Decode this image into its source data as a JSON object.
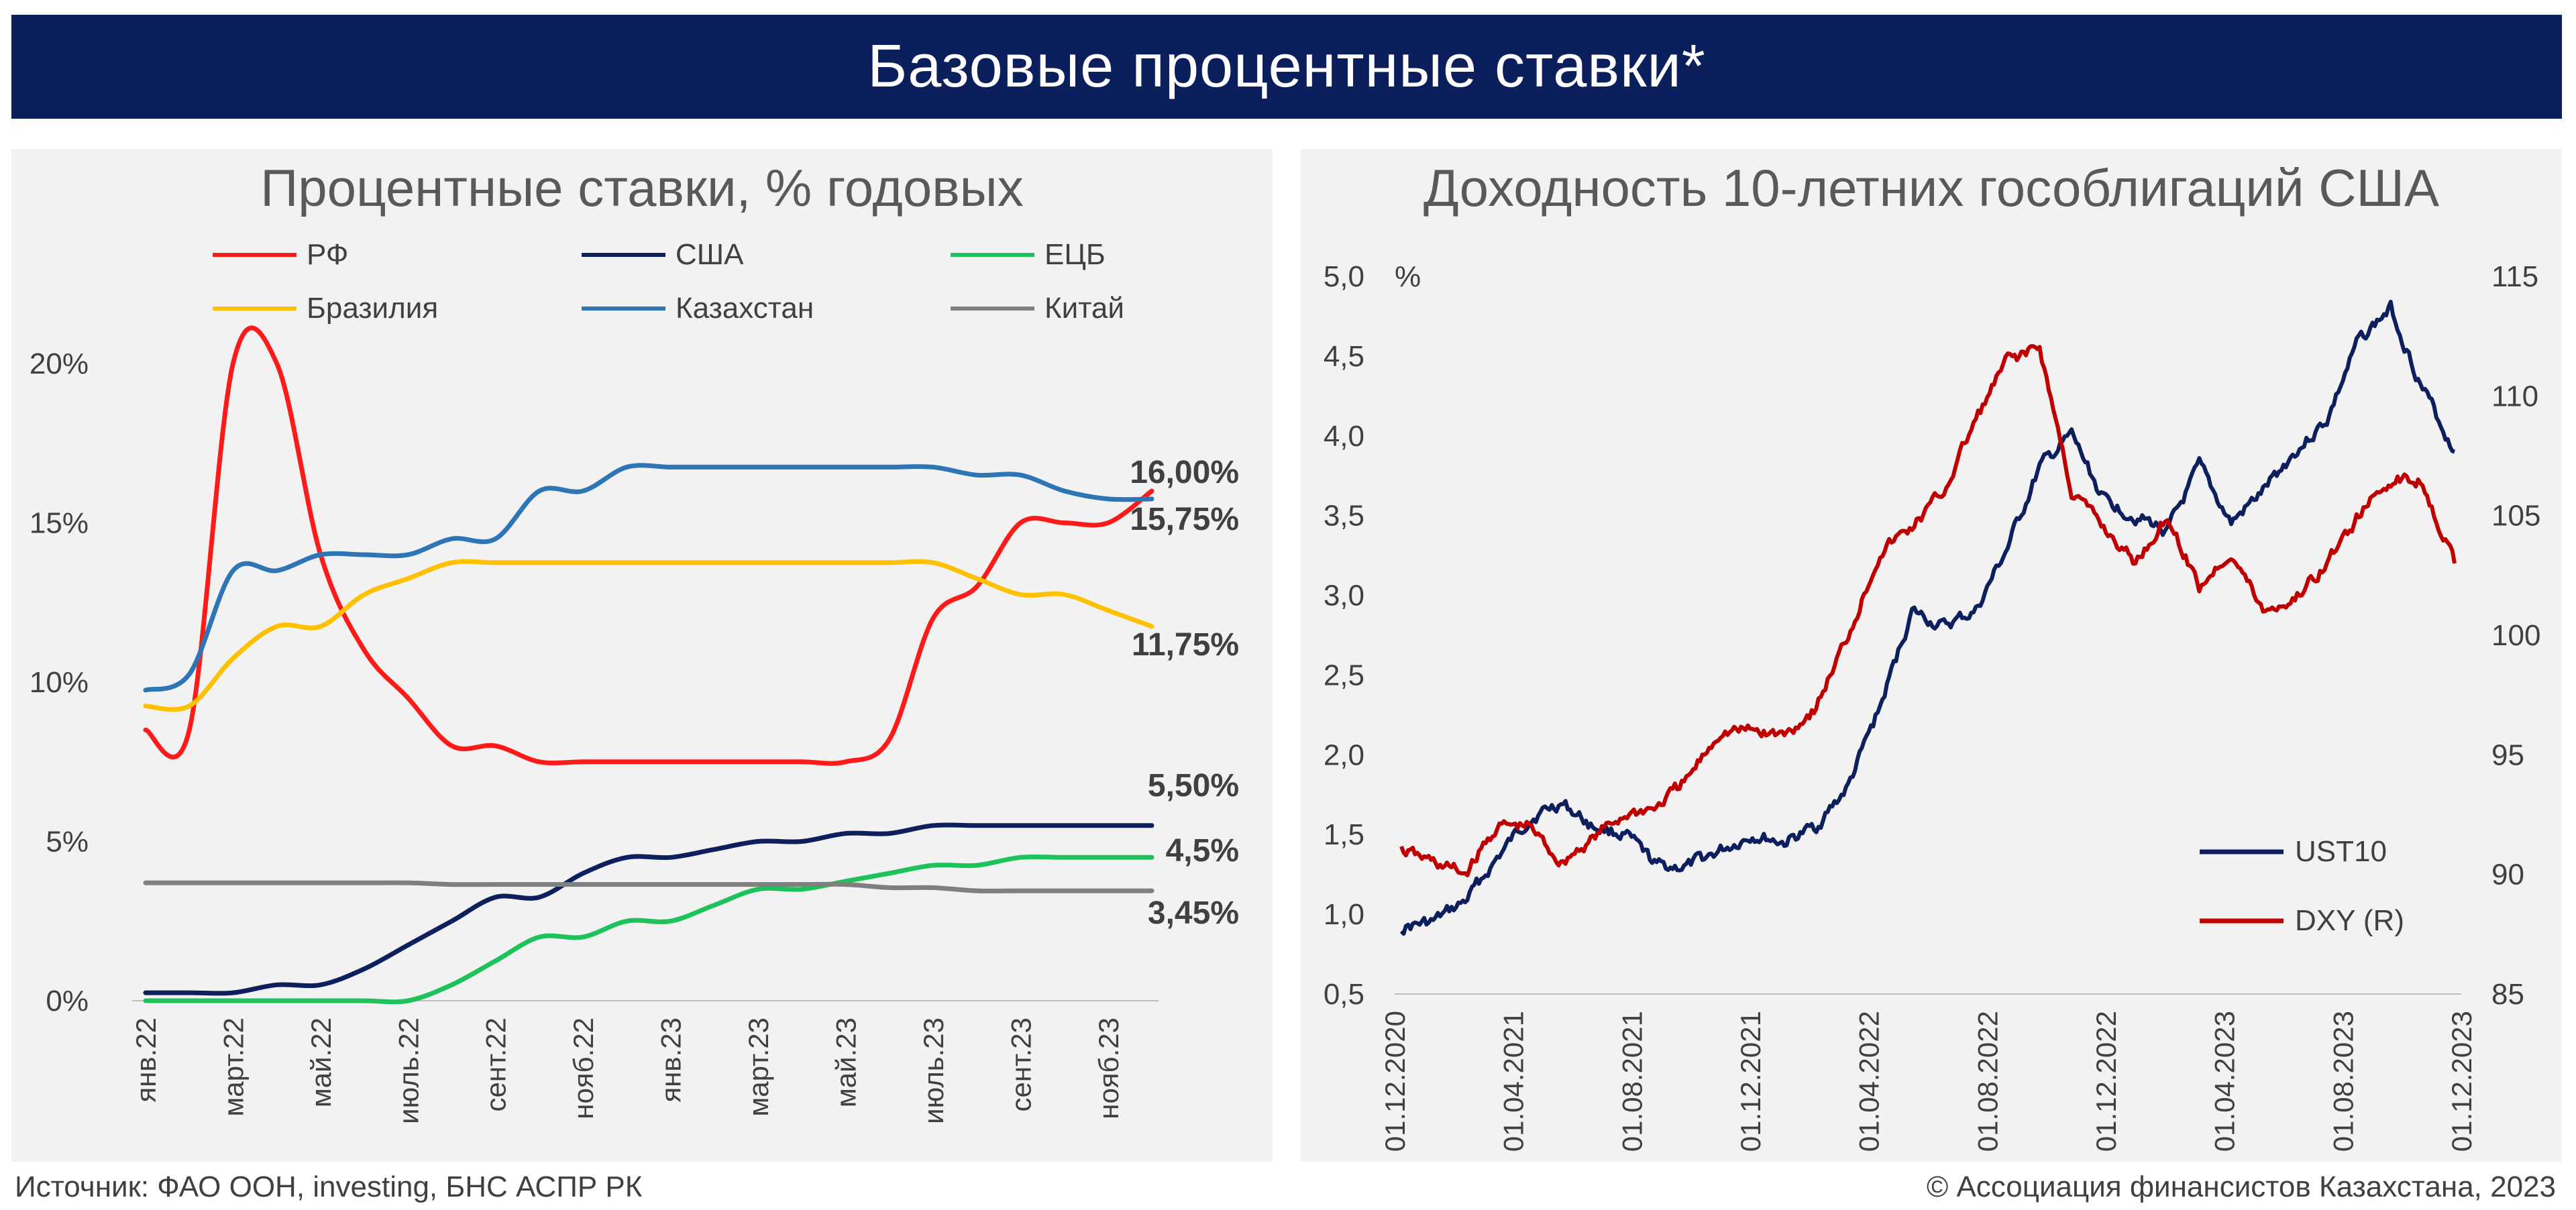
{
  "banner_title": "Базовые процентные ставки*",
  "footer": {
    "source": "Источник: ФАО ООН, investing, БНС АСПР РК",
    "copyright": "© Ассоциация финансистов Казахстана, 2023"
  },
  "chart_data": [
    {
      "type": "line",
      "title": "Процентные ставки, % годовых",
      "xlabel": "",
      "ylabel": "",
      "ylim": [
        0,
        20
      ],
      "grid": false,
      "yticks": [
        {
          "value": 0,
          "label": "0%"
        },
        {
          "value": 5,
          "label": "5%"
        },
        {
          "value": 10,
          "label": "10%"
        },
        {
          "value": 15,
          "label": "15%"
        },
        {
          "value": 20,
          "label": "20%"
        }
      ],
      "x_tick_labels": [
        "янв.22",
        "март.22",
        "май.22",
        "июль.22",
        "сент.22",
        "нояб.22",
        "янв.23",
        "март.23",
        "май.23",
        "июль.23",
        "сент.23",
        "нояб.23"
      ],
      "x_months": [
        "2022-01",
        "2022-02",
        "2022-03",
        "2022-04",
        "2022-05",
        "2022-06",
        "2022-07",
        "2022-08",
        "2022-09",
        "2022-10",
        "2022-11",
        "2022-12",
        "2023-01",
        "2023-02",
        "2023-03",
        "2023-04",
        "2023-05",
        "2023-06",
        "2023-07",
        "2023-08",
        "2023-09",
        "2023-10",
        "2023-11",
        "2023-12"
      ],
      "legend": [
        {
          "name": "РФ",
          "color": "#ff1a1a"
        },
        {
          "name": "США",
          "color": "#0d1f5c"
        },
        {
          "name": "ЕЦБ",
          "color": "#1ec25a"
        },
        {
          "name": "Бразилия",
          "color": "#ffc000"
        },
        {
          "name": "Казахстан",
          "color": "#2e75b6"
        },
        {
          "name": "Китай",
          "color": "#7f7f7f"
        }
      ],
      "series": [
        {
          "name": "РФ",
          "color": "#ff1a1a",
          "values": [
            8.5,
            8.5,
            20,
            20,
            14,
            11,
            9.5,
            8,
            8,
            7.5,
            7.5,
            7.5,
            7.5,
            7.5,
            7.5,
            7.5,
            7.5,
            8.2,
            12,
            13,
            15,
            15,
            15,
            16
          ]
        },
        {
          "name": "США",
          "color": "#0d1f5c",
          "values": [
            0.25,
            0.25,
            0.25,
            0.5,
            0.5,
            1.0,
            1.75,
            2.5,
            3.25,
            3.25,
            4.0,
            4.5,
            4.5,
            4.75,
            5.0,
            5.0,
            5.25,
            5.25,
            5.5,
            5.5,
            5.5,
            5.5,
            5.5,
            5.5
          ]
        },
        {
          "name": "ЕЦБ",
          "color": "#1ec25a",
          "values": [
            0,
            0,
            0,
            0,
            0,
            0,
            0,
            0.5,
            1.25,
            2.0,
            2.0,
            2.5,
            2.5,
            3.0,
            3.5,
            3.5,
            3.75,
            4.0,
            4.25,
            4.25,
            4.5,
            4.5,
            4.5,
            4.5
          ]
        },
        {
          "name": "Бразилия",
          "color": "#ffc000",
          "values": [
            9.25,
            9.25,
            10.75,
            11.75,
            11.75,
            12.75,
            13.25,
            13.75,
            13.75,
            13.75,
            13.75,
            13.75,
            13.75,
            13.75,
            13.75,
            13.75,
            13.75,
            13.75,
            13.75,
            13.25,
            12.75,
            12.75,
            12.25,
            11.75
          ]
        },
        {
          "name": "Казахстан",
          "color": "#2e75b6",
          "values": [
            9.75,
            10.25,
            13.5,
            13.5,
            14.0,
            14.0,
            14.0,
            14.5,
            14.5,
            16.0,
            16.0,
            16.75,
            16.75,
            16.75,
            16.75,
            16.75,
            16.75,
            16.75,
            16.75,
            16.5,
            16.5,
            16.0,
            15.75,
            15.75
          ]
        },
        {
          "name": "Китай",
          "color": "#7f7f7f",
          "values": [
            3.7,
            3.7,
            3.7,
            3.7,
            3.7,
            3.7,
            3.7,
            3.65,
            3.65,
            3.65,
            3.65,
            3.65,
            3.65,
            3.65,
            3.65,
            3.65,
            3.65,
            3.55,
            3.55,
            3.45,
            3.45,
            3.45,
            3.45,
            3.45
          ]
        }
      ],
      "end_labels": [
        {
          "series": "РФ",
          "text": "16,00%"
        },
        {
          "series": "Казахстан",
          "text": "15,75%"
        },
        {
          "series": "Бразилия",
          "text": "11,75%"
        },
        {
          "series": "США",
          "text": "5,50%"
        },
        {
          "series": "ЕЦБ",
          "text": "4,5%"
        },
        {
          "series": "Китай",
          "text": "3,45%"
        }
      ]
    },
    {
      "type": "line",
      "title": "Доходность 10-летних гособлигаций США",
      "xlabel": "",
      "ylabel": "%",
      "ylim": [
        0.5,
        5.0
      ],
      "y2lim": [
        85,
        115
      ],
      "grid": false,
      "yticks": [
        {
          "value": 0.5,
          "label": "0,5"
        },
        {
          "value": 1.0,
          "label": "1,0"
        },
        {
          "value": 1.5,
          "label": "1,5"
        },
        {
          "value": 2.0,
          "label": "2,0"
        },
        {
          "value": 2.5,
          "label": "2,5"
        },
        {
          "value": 3.0,
          "label": "3,0"
        },
        {
          "value": 3.5,
          "label": "3,5"
        },
        {
          "value": 4.0,
          "label": "4,0"
        },
        {
          "value": 4.5,
          "label": "4,5"
        },
        {
          "value": 5.0,
          "label": "5,0"
        }
      ],
      "y2ticks": [
        {
          "value": 85,
          "label": "85"
        },
        {
          "value": 90,
          "label": "90"
        },
        {
          "value": 95,
          "label": "95"
        },
        {
          "value": 100,
          "label": "100"
        },
        {
          "value": 105,
          "label": "105"
        },
        {
          "value": 110,
          "label": "110"
        },
        {
          "value": 115,
          "label": "115"
        }
      ],
      "x_tick_labels": [
        "01.12.2020",
        "01.04.2021",
        "01.08.2021",
        "01.12.2021",
        "01.04.2022",
        "01.08.2022",
        "01.12.2022",
        "01.04.2023",
        "01.08.2023",
        "01.12.2023"
      ],
      "legend": [
        {
          "name": "UST10",
          "color": "#0d1f5c"
        },
        {
          "name": "DXY (R)",
          "color": "#c00000"
        }
      ],
      "series": [
        {
          "name": "UST10",
          "axis": "left",
          "color": "#0d1f5c",
          "values": [
            0.92,
            0.95,
            1.08,
            1.35,
            1.6,
            1.7,
            1.55,
            1.5,
            1.3,
            1.3,
            1.4,
            1.5,
            1.45,
            1.55,
            1.8,
            2.3,
            2.9,
            2.8,
            2.9,
            3.3,
            3.8,
            4.0,
            3.6,
            3.5,
            3.4,
            3.8,
            3.45,
            3.65,
            3.9,
            4.1,
            4.6,
            4.8,
            4.3,
            3.9
          ]
        },
        {
          "name": "DXY (R)",
          "axis": "right",
          "color": "#c00000",
          "values": [
            91.0,
            90.5,
            90.0,
            92.0,
            92.0,
            90.5,
            91.5,
            92.5,
            92.8,
            94.0,
            96.0,
            96.0,
            95.8,
            97.0,
            100.0,
            103.5,
            104.5,
            106.0,
            109.0,
            111.5,
            112.0,
            106.0,
            104.5,
            103.0,
            105.0,
            102.0,
            103.5,
            101.0,
            101.5,
            103.0,
            105.0,
            106.5,
            106.5,
            103.0
          ]
        }
      ]
    }
  ]
}
